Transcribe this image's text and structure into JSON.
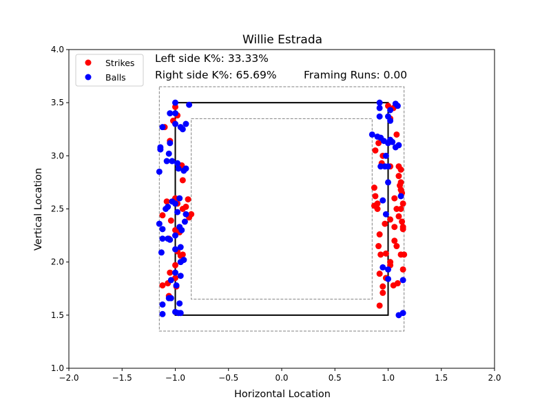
{
  "chart_data": {
    "type": "scatter",
    "title": "Willie Estrada",
    "xlabel": "Horizontal Location",
    "ylabel": "Vertical Location",
    "xlim": [
      -2.0,
      2.0
    ],
    "ylim": [
      1.0,
      4.0
    ],
    "xticks": [
      -2.0,
      -1.5,
      -1.0,
      -0.5,
      0.0,
      0.5,
      1.0,
      1.5,
      2.0
    ],
    "yticks": [
      1.0,
      1.5,
      2.0,
      2.5,
      3.0,
      3.5,
      4.0
    ],
    "xtick_labels": [
      "−2.0",
      "−1.5",
      "−1.0",
      "−0.5",
      "0.0",
      "0.5",
      "1.0",
      "1.5",
      "2.0"
    ],
    "ytick_labels": [
      "1.0",
      "1.5",
      "2.0",
      "2.5",
      "3.0",
      "3.5",
      "4.0"
    ],
    "grid": false,
    "legend_position": "top-left",
    "annotations": {
      "left_k": "Left side K%: 33.33%",
      "right_k": "Right side K%: 65.69%",
      "framing": "Framing Runs: 0.00"
    },
    "zones": {
      "strike_zone": {
        "x": [
          -1.0,
          1.0
        ],
        "y": [
          1.5,
          3.5
        ],
        "color": "#000000"
      },
      "outer_zone": {
        "x": [
          -1.15,
          1.15
        ],
        "y": [
          1.35,
          3.65
        ],
        "color": "#808080"
      },
      "inner_zone": {
        "x": [
          -0.85,
          0.85
        ],
        "y": [
          1.65,
          3.35
        ],
        "color": "#808080"
      }
    },
    "series": [
      {
        "name": "Strikes",
        "color": "#ff0000",
        "points": [
          [
            -1.1,
            3.27
          ],
          [
            -1.02,
            3.33
          ],
          [
            -1.0,
            3.46
          ],
          [
            -0.98,
            3.38
          ],
          [
            -1.05,
            3.14
          ],
          [
            -1.08,
            2.57
          ],
          [
            -0.94,
            2.91
          ],
          [
            -0.93,
            2.77
          ],
          [
            -0.88,
            2.59
          ],
          [
            -0.85,
            2.45
          ],
          [
            -0.87,
            2.42
          ],
          [
            -0.9,
            2.52
          ],
          [
            -0.93,
            2.5
          ],
          [
            -0.98,
            2.55
          ],
          [
            -1.0,
            2.6
          ],
          [
            -1.12,
            2.44
          ],
          [
            -1.04,
            2.39
          ],
          [
            -1.0,
            2.3
          ],
          [
            -0.96,
            2.28
          ],
          [
            -1.06,
            2.22
          ],
          [
            -0.98,
            2.1
          ],
          [
            -0.95,
            2.06
          ],
          [
            -0.93,
            2.07
          ],
          [
            -1.0,
            1.97
          ],
          [
            -1.05,
            1.9
          ],
          [
            -1.0,
            1.85
          ],
          [
            -1.07,
            1.8
          ],
          [
            -1.12,
            1.78
          ],
          [
            -0.99,
            1.77
          ],
          [
            -1.06,
            1.68
          ],
          [
            0.88,
            3.05
          ],
          [
            0.91,
            3.12
          ],
          [
            0.95,
            3.0
          ],
          [
            1.0,
            3.47
          ],
          [
            1.05,
            3.45
          ],
          [
            1.08,
            3.2
          ],
          [
            1.02,
            3.35
          ],
          [
            0.94,
            2.93
          ],
          [
            1.02,
            2.9
          ],
          [
            1.1,
            2.9
          ],
          [
            1.12,
            2.87
          ],
          [
            1.12,
            2.75
          ],
          [
            1.11,
            2.72
          ],
          [
            1.12,
            2.68
          ],
          [
            1.13,
            2.65
          ],
          [
            1.14,
            2.55
          ],
          [
            1.12,
            2.5
          ],
          [
            1.08,
            2.5
          ],
          [
            1.1,
            2.43
          ],
          [
            1.13,
            2.38
          ],
          [
            1.14,
            2.33
          ],
          [
            1.14,
            2.31
          ],
          [
            1.06,
            2.33
          ],
          [
            1.02,
            2.4
          ],
          [
            0.97,
            2.36
          ],
          [
            0.9,
            2.5
          ],
          [
            0.87,
            2.53
          ],
          [
            0.88,
            2.62
          ],
          [
            0.87,
            2.7
          ],
          [
            0.9,
            2.55
          ],
          [
            0.92,
            2.26
          ],
          [
            0.91,
            2.15
          ],
          [
            0.93,
            2.07
          ],
          [
            0.98,
            2.08
          ],
          [
            1.06,
            2.2
          ],
          [
            1.08,
            2.15
          ],
          [
            1.12,
            2.07
          ],
          [
            1.15,
            2.07
          ],
          [
            1.02,
            1.97
          ],
          [
            1.02,
            2.0
          ],
          [
            0.92,
            1.89
          ],
          [
            0.98,
            1.85
          ],
          [
            1.14,
            1.93
          ],
          [
            1.09,
            1.8
          ],
          [
            1.05,
            1.78
          ],
          [
            0.95,
            1.77
          ],
          [
            0.95,
            1.71
          ],
          [
            0.92,
            1.59
          ],
          [
            1.1,
            2.81
          ],
          [
            1.06,
            2.6
          ]
        ]
      },
      {
        "name": "Balls",
        "color": "#0000ff",
        "points": [
          [
            -1.0,
            3.5
          ],
          [
            -1.05,
            3.4
          ],
          [
            -1.0,
            3.4
          ],
          [
            -0.87,
            3.48
          ],
          [
            -1.12,
            3.27
          ],
          [
            -1.0,
            3.3
          ],
          [
            -0.95,
            3.27
          ],
          [
            -0.9,
            3.3
          ],
          [
            -0.93,
            3.25
          ],
          [
            -1.05,
            3.12
          ],
          [
            -1.14,
            3.08
          ],
          [
            -1.14,
            3.06
          ],
          [
            -1.06,
            3.02
          ],
          [
            -1.08,
            2.95
          ],
          [
            -1.03,
            2.95
          ],
          [
            -0.98,
            2.93
          ],
          [
            -0.97,
            2.88
          ],
          [
            -0.92,
            2.86
          ],
          [
            -0.9,
            2.88
          ],
          [
            -1.15,
            2.85
          ],
          [
            -0.96,
            2.6
          ],
          [
            -1.03,
            2.57
          ],
          [
            -1.0,
            2.55
          ],
          [
            -1.07,
            2.52
          ],
          [
            -1.09,
            2.5
          ],
          [
            -0.98,
            2.47
          ],
          [
            -0.9,
            2.45
          ],
          [
            -0.91,
            2.38
          ],
          [
            -1.15,
            2.36
          ],
          [
            -1.12,
            2.31
          ],
          [
            -0.96,
            2.33
          ],
          [
            -0.94,
            2.3
          ],
          [
            -1.0,
            2.25
          ],
          [
            -1.12,
            2.22
          ],
          [
            -1.07,
            2.22
          ],
          [
            -1.05,
            2.21
          ],
          [
            -0.95,
            2.14
          ],
          [
            -1.0,
            2.12
          ],
          [
            -1.13,
            2.09
          ],
          [
            -0.92,
            2.02
          ],
          [
            -0.95,
            2.0
          ],
          [
            -1.0,
            1.9
          ],
          [
            -0.95,
            1.87
          ],
          [
            -1.04,
            1.83
          ],
          [
            -0.99,
            1.78
          ],
          [
            -1.04,
            1.66
          ],
          [
            -1.06,
            1.66
          ],
          [
            -0.96,
            1.61
          ],
          [
            -1.12,
            1.6
          ],
          [
            -1.0,
            1.53
          ],
          [
            -0.97,
            1.52
          ],
          [
            -0.95,
            1.52
          ],
          [
            -1.12,
            1.51
          ],
          [
            0.92,
            3.5
          ],
          [
            0.92,
            3.45
          ],
          [
            1.02,
            3.43
          ],
          [
            1.07,
            3.49
          ],
          [
            1.09,
            3.47
          ],
          [
            0.92,
            3.37
          ],
          [
            1.0,
            3.37
          ],
          [
            1.02,
            3.33
          ],
          [
            0.85,
            3.2
          ],
          [
            0.9,
            3.18
          ],
          [
            0.93,
            3.17
          ],
          [
            0.96,
            3.14
          ],
          [
            1.0,
            3.12
          ],
          [
            1.02,
            3.15
          ],
          [
            1.04,
            3.13
          ],
          [
            1.1,
            3.1
          ],
          [
            1.07,
            3.08
          ],
          [
            0.98,
            3.0
          ],
          [
            0.93,
            2.9
          ],
          [
            0.97,
            2.9
          ],
          [
            1.0,
            2.9
          ],
          [
            1.0,
            2.75
          ],
          [
            1.12,
            2.62
          ],
          [
            0.95,
            2.58
          ],
          [
            0.98,
            2.45
          ],
          [
            0.95,
            1.95
          ],
          [
            1.0,
            1.93
          ],
          [
            1.14,
            1.83
          ],
          [
            1.0,
            1.84
          ],
          [
            1.14,
            1.52
          ],
          [
            1.1,
            1.5
          ]
        ]
      }
    ]
  }
}
